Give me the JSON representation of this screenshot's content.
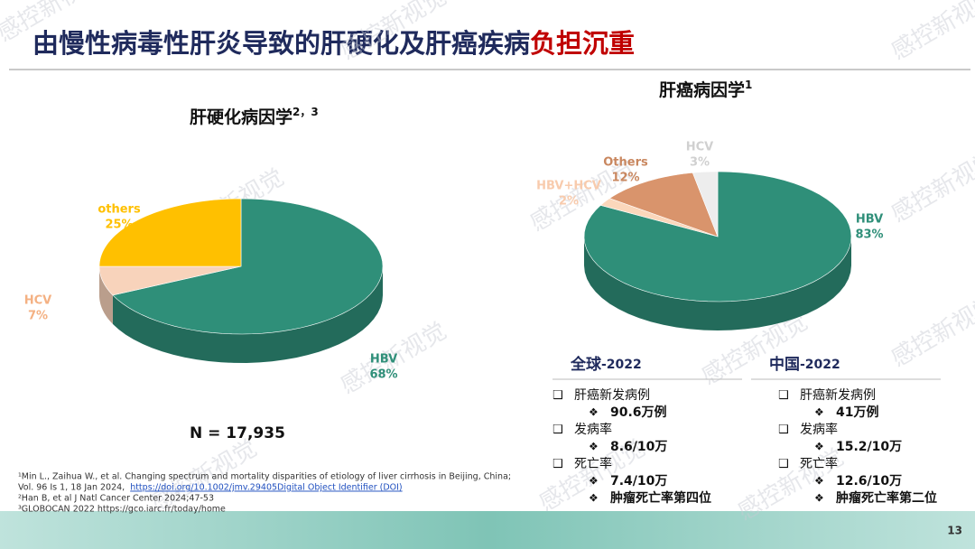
{
  "title": "由慢性病毒性肝炎导致的肝硬化及肝癌疾病",
  "title_emphasis": "负担沉重",
  "chart_data": [
    {
      "type": "pie",
      "title": "肝硬化病因学",
      "title_sup": "2，3",
      "categories": [
        "HBV",
        "HCV",
        "others"
      ],
      "values": [
        68,
        7,
        25
      ],
      "value_labels": [
        "68%",
        "7%",
        "25%"
      ],
      "colors": [
        "#2f8f79",
        "#f8d3bb",
        "#ffc000"
      ],
      "label_colors": [
        "#2f8f79",
        "#f4b183",
        "#ffc000"
      ]
    },
    {
      "type": "pie",
      "title": "肝癌病因学",
      "title_sup": "1",
      "categories": [
        "HBV",
        "HBV+HCV",
        "Others",
        "HCV"
      ],
      "values": [
        83,
        2,
        12,
        3
      ],
      "value_labels": [
        "83%",
        "2%",
        "12%",
        "3%"
      ],
      "colors": [
        "#2f8f79",
        "#fbd7bb",
        "#d9946c",
        "#ededed"
      ],
      "label_colors": [
        "#2f8f79",
        "#f8cbad",
        "#c9875f",
        "#d0d0d0"
      ]
    }
  ],
  "n_label": "N = 17,935",
  "stats": [
    {
      "heading": "全球",
      "year": "-2022",
      "items": [
        {
          "label": "肝癌新发病例",
          "values": [
            "90.6万例"
          ]
        },
        {
          "label": "发病率",
          "values": [
            "8.6/10万"
          ]
        },
        {
          "label": "死亡率",
          "values": [
            "7.4/10万",
            "肿瘤死亡率第四位"
          ]
        }
      ]
    },
    {
      "heading": "中国",
      "year": "-2022",
      "items": [
        {
          "label": "肝癌新发病例",
          "values": [
            "41万例"
          ]
        },
        {
          "label": "发病率",
          "values": [
            "15.2/10万"
          ]
        },
        {
          "label": "死亡率",
          "values": [
            "12.6/10万",
            "肿瘤死亡率第二位"
          ]
        }
      ]
    }
  ],
  "references": [
    "¹Min L., Zaihua W., et al. Changing spectrum and mortality disparities of etiology of liver cirrhosis in Beijing, China;",
    "Vol. 96 Is 1, 18 Jan 2024,",
    "²Han B, et al J Natl Cancer Center 2024;47-53",
    "³GLOBOCAN 2022 https://gco.iarc.fr/today/home"
  ],
  "reference_link": "https://doi.org/10.1002/jmv.29405Digital Object Identifier (DOI)",
  "page_number": "13",
  "watermark": "感控新视觉"
}
